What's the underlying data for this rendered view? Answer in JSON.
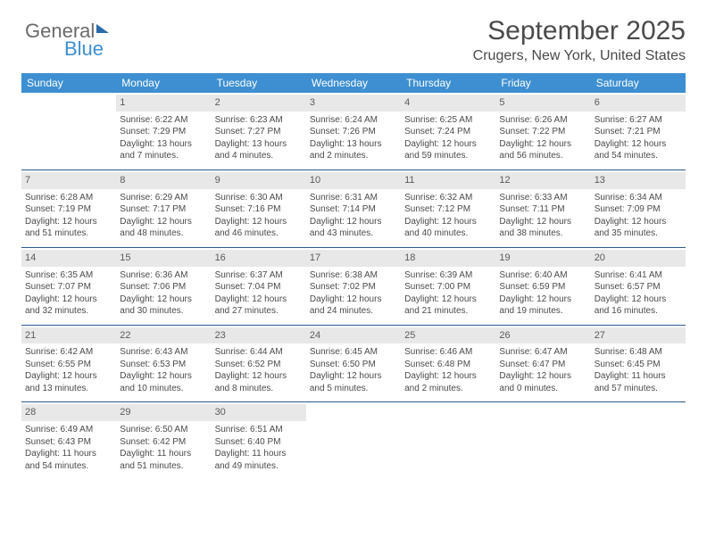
{
  "brand": {
    "part1": "General",
    "part2": "Blue"
  },
  "title": "September 2025",
  "location": "Crugers, New York, United States",
  "day_headers": [
    "Sunday",
    "Monday",
    "Tuesday",
    "Wednesday",
    "Thursday",
    "Friday",
    "Saturday"
  ],
  "colors": {
    "header_bg": "#3d8fd1",
    "header_text": "#ffffff",
    "daynum_bg": "#e8e8e8",
    "rule": "#2b5a8a",
    "text": "#4a4a4a",
    "brand_blue": "#3d8fd1",
    "brand_gray": "#6a6a6a"
  },
  "weeks": [
    [
      null,
      {
        "n": "1",
        "sr": "Sunrise: 6:22 AM",
        "ss": "Sunset: 7:29 PM",
        "d1": "Daylight: 13 hours",
        "d2": "and 7 minutes."
      },
      {
        "n": "2",
        "sr": "Sunrise: 6:23 AM",
        "ss": "Sunset: 7:27 PM",
        "d1": "Daylight: 13 hours",
        "d2": "and 4 minutes."
      },
      {
        "n": "3",
        "sr": "Sunrise: 6:24 AM",
        "ss": "Sunset: 7:26 PM",
        "d1": "Daylight: 13 hours",
        "d2": "and 2 minutes."
      },
      {
        "n": "4",
        "sr": "Sunrise: 6:25 AM",
        "ss": "Sunset: 7:24 PM",
        "d1": "Daylight: 12 hours",
        "d2": "and 59 minutes."
      },
      {
        "n": "5",
        "sr": "Sunrise: 6:26 AM",
        "ss": "Sunset: 7:22 PM",
        "d1": "Daylight: 12 hours",
        "d2": "and 56 minutes."
      },
      {
        "n": "6",
        "sr": "Sunrise: 6:27 AM",
        "ss": "Sunset: 7:21 PM",
        "d1": "Daylight: 12 hours",
        "d2": "and 54 minutes."
      }
    ],
    [
      {
        "n": "7",
        "sr": "Sunrise: 6:28 AM",
        "ss": "Sunset: 7:19 PM",
        "d1": "Daylight: 12 hours",
        "d2": "and 51 minutes."
      },
      {
        "n": "8",
        "sr": "Sunrise: 6:29 AM",
        "ss": "Sunset: 7:17 PM",
        "d1": "Daylight: 12 hours",
        "d2": "and 48 minutes."
      },
      {
        "n": "9",
        "sr": "Sunrise: 6:30 AM",
        "ss": "Sunset: 7:16 PM",
        "d1": "Daylight: 12 hours",
        "d2": "and 46 minutes."
      },
      {
        "n": "10",
        "sr": "Sunrise: 6:31 AM",
        "ss": "Sunset: 7:14 PM",
        "d1": "Daylight: 12 hours",
        "d2": "and 43 minutes."
      },
      {
        "n": "11",
        "sr": "Sunrise: 6:32 AM",
        "ss": "Sunset: 7:12 PM",
        "d1": "Daylight: 12 hours",
        "d2": "and 40 minutes."
      },
      {
        "n": "12",
        "sr": "Sunrise: 6:33 AM",
        "ss": "Sunset: 7:11 PM",
        "d1": "Daylight: 12 hours",
        "d2": "and 38 minutes."
      },
      {
        "n": "13",
        "sr": "Sunrise: 6:34 AM",
        "ss": "Sunset: 7:09 PM",
        "d1": "Daylight: 12 hours",
        "d2": "and 35 minutes."
      }
    ],
    [
      {
        "n": "14",
        "sr": "Sunrise: 6:35 AM",
        "ss": "Sunset: 7:07 PM",
        "d1": "Daylight: 12 hours",
        "d2": "and 32 minutes."
      },
      {
        "n": "15",
        "sr": "Sunrise: 6:36 AM",
        "ss": "Sunset: 7:06 PM",
        "d1": "Daylight: 12 hours",
        "d2": "and 30 minutes."
      },
      {
        "n": "16",
        "sr": "Sunrise: 6:37 AM",
        "ss": "Sunset: 7:04 PM",
        "d1": "Daylight: 12 hours",
        "d2": "and 27 minutes."
      },
      {
        "n": "17",
        "sr": "Sunrise: 6:38 AM",
        "ss": "Sunset: 7:02 PM",
        "d1": "Daylight: 12 hours",
        "d2": "and 24 minutes."
      },
      {
        "n": "18",
        "sr": "Sunrise: 6:39 AM",
        "ss": "Sunset: 7:00 PM",
        "d1": "Daylight: 12 hours",
        "d2": "and 21 minutes."
      },
      {
        "n": "19",
        "sr": "Sunrise: 6:40 AM",
        "ss": "Sunset: 6:59 PM",
        "d1": "Daylight: 12 hours",
        "d2": "and 19 minutes."
      },
      {
        "n": "20",
        "sr": "Sunrise: 6:41 AM",
        "ss": "Sunset: 6:57 PM",
        "d1": "Daylight: 12 hours",
        "d2": "and 16 minutes."
      }
    ],
    [
      {
        "n": "21",
        "sr": "Sunrise: 6:42 AM",
        "ss": "Sunset: 6:55 PM",
        "d1": "Daylight: 12 hours",
        "d2": "and 13 minutes."
      },
      {
        "n": "22",
        "sr": "Sunrise: 6:43 AM",
        "ss": "Sunset: 6:53 PM",
        "d1": "Daylight: 12 hours",
        "d2": "and 10 minutes."
      },
      {
        "n": "23",
        "sr": "Sunrise: 6:44 AM",
        "ss": "Sunset: 6:52 PM",
        "d1": "Daylight: 12 hours",
        "d2": "and 8 minutes."
      },
      {
        "n": "24",
        "sr": "Sunrise: 6:45 AM",
        "ss": "Sunset: 6:50 PM",
        "d1": "Daylight: 12 hours",
        "d2": "and 5 minutes."
      },
      {
        "n": "25",
        "sr": "Sunrise: 6:46 AM",
        "ss": "Sunset: 6:48 PM",
        "d1": "Daylight: 12 hours",
        "d2": "and 2 minutes."
      },
      {
        "n": "26",
        "sr": "Sunrise: 6:47 AM",
        "ss": "Sunset: 6:47 PM",
        "d1": "Daylight: 12 hours",
        "d2": "and 0 minutes."
      },
      {
        "n": "27",
        "sr": "Sunrise: 6:48 AM",
        "ss": "Sunset: 6:45 PM",
        "d1": "Daylight: 11 hours",
        "d2": "and 57 minutes."
      }
    ],
    [
      {
        "n": "28",
        "sr": "Sunrise: 6:49 AM",
        "ss": "Sunset: 6:43 PM",
        "d1": "Daylight: 11 hours",
        "d2": "and 54 minutes."
      },
      {
        "n": "29",
        "sr": "Sunrise: 6:50 AM",
        "ss": "Sunset: 6:42 PM",
        "d1": "Daylight: 11 hours",
        "d2": "and 51 minutes."
      },
      {
        "n": "30",
        "sr": "Sunrise: 6:51 AM",
        "ss": "Sunset: 6:40 PM",
        "d1": "Daylight: 11 hours",
        "d2": "and 49 minutes."
      },
      null,
      null,
      null,
      null
    ]
  ]
}
